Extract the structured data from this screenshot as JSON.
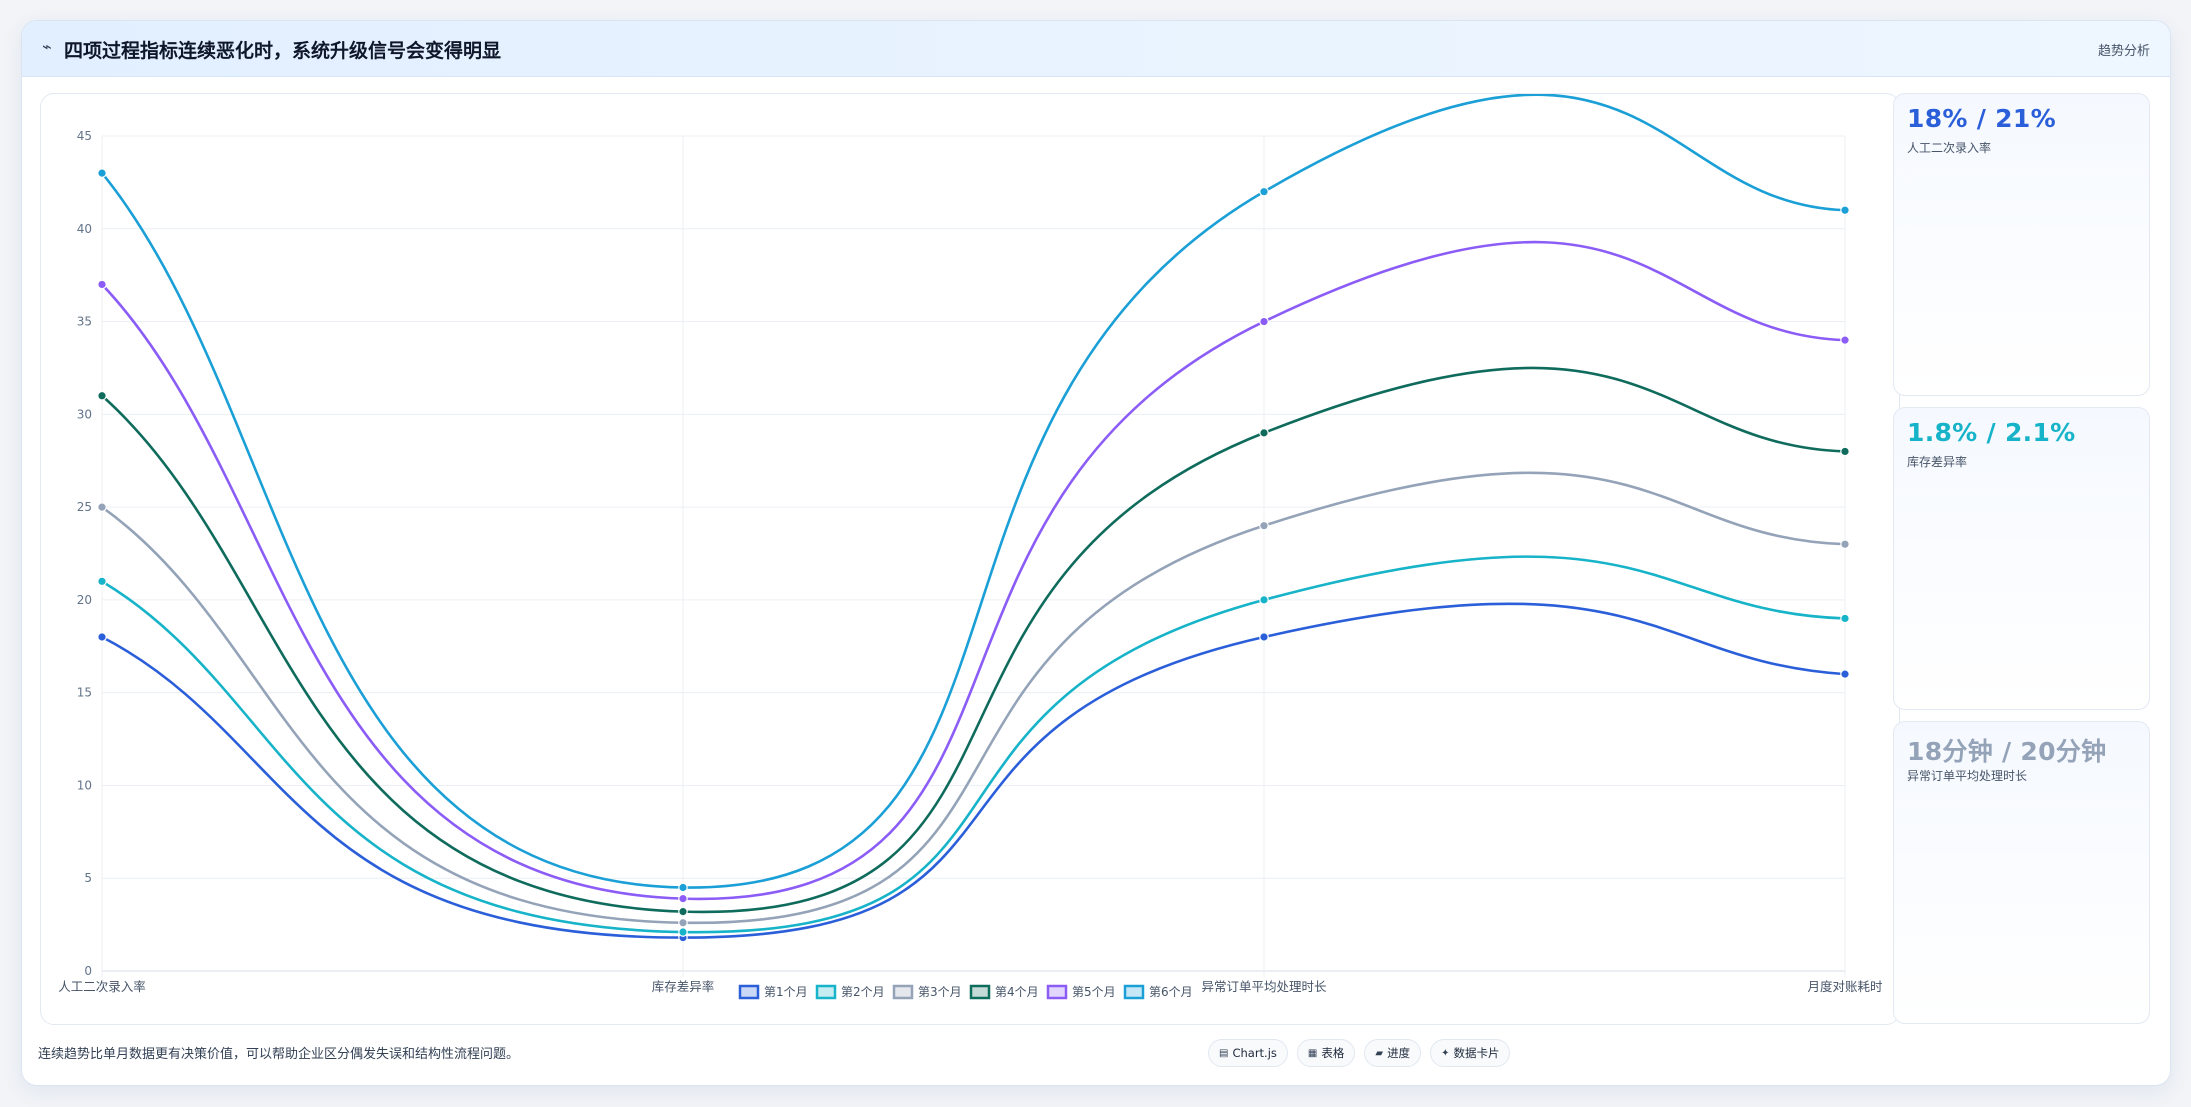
{
  "header": {
    "icon": "trend-line-icon",
    "title": "四项过程指标连续恶化时，系统升级信号会变得明显",
    "tag": "趋势分析"
  },
  "kpis": [
    {
      "value": "18% / 21%",
      "label": "人工二次录入率",
      "color": "#2b5fd9"
    },
    {
      "value": "1.8% / 2.1%",
      "label": "库存差异率",
      "color": "#17b3c9"
    },
    {
      "value": "18分钟 / 20分钟",
      "label": "异常订单平均处理时长",
      "color": "#94a3b8"
    }
  ],
  "footer": {
    "note": "连续趋势比单月数据更有决策价值，可以帮助企业区分偶发失误和结构性流程问题。",
    "chips": [
      {
        "icon": "chart-icon",
        "label": "Chart.js"
      },
      {
        "icon": "table-icon",
        "label": "表格"
      },
      {
        "icon": "progress-icon",
        "label": "进度"
      },
      {
        "icon": "sparkle-icon",
        "label": "数据卡片"
      }
    ]
  },
  "chart_data": {
    "type": "line",
    "categories": [
      "人工二次录入率",
      "库存差异率",
      "异常订单平均处理时长",
      "月度对账耗时"
    ],
    "ylim": [
      0,
      45
    ],
    "yticks": [
      0,
      5,
      10,
      15,
      20,
      25,
      30,
      35,
      40,
      45
    ],
    "grid": true,
    "legend_position": "bottom",
    "series": [
      {
        "name": "第1个月",
        "color": "#2b5fd9",
        "values": [
          18,
          1.8,
          18,
          16
        ]
      },
      {
        "name": "第2个月",
        "color": "#17b3c9",
        "values": [
          21,
          2.1,
          20,
          19
        ]
      },
      {
        "name": "第3个月",
        "color": "#94a3b8",
        "values": [
          25,
          2.6,
          24,
          23
        ]
      },
      {
        "name": "第4个月",
        "color": "#0f6b5c",
        "values": [
          31,
          3.2,
          29,
          28
        ]
      },
      {
        "name": "第5个月",
        "color": "#8b5cf6",
        "values": [
          37,
          3.9,
          35,
          34
        ]
      },
      {
        "name": "第6个月",
        "color": "#1a9fd6",
        "values": [
          43,
          4.5,
          42,
          41
        ]
      }
    ]
  }
}
